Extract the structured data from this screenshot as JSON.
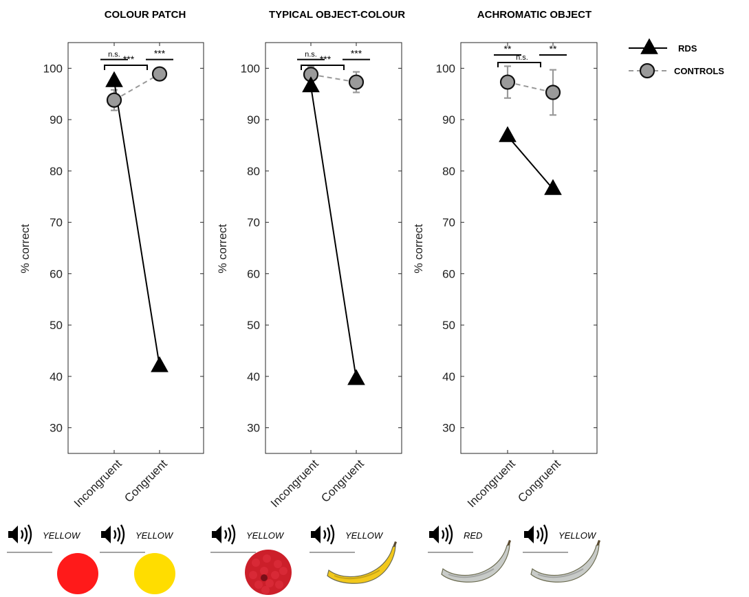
{
  "chart_data": [
    {
      "type": "line",
      "title": "COLOUR PATCH",
      "ylabel": "% correct",
      "ylim": [
        25,
        105
      ],
      "yticks": [
        30,
        40,
        50,
        60,
        70,
        80,
        90,
        100
      ],
      "categories": [
        "Incongruent",
        "Congruent"
      ],
      "series": [
        {
          "name": "RDS",
          "values": [
            97.5,
            42
          ]
        },
        {
          "name": "CONTROLS",
          "values": [
            93.8,
            98.9
          ],
          "error": [
            2.0,
            0.7
          ]
        }
      ],
      "significance": [
        {
          "label": "n.s.",
          "between": "RDS-CONTROLS",
          "category": "Incongruent"
        },
        {
          "label": "***",
          "between": "RDS-CONTROLS",
          "category": "Congruent"
        },
        {
          "label": "***",
          "between": "Incongruent-Congruent"
        }
      ],
      "stimuli": [
        {
          "word": "YELLOW",
          "picture": "red-patch"
        },
        {
          "word": "YELLOW",
          "picture": "yellow-patch"
        }
      ]
    },
    {
      "type": "line",
      "title": "TYPICAL OBJECT-COLOUR",
      "ylabel": "% correct",
      "ylim": [
        25,
        105
      ],
      "yticks": [
        30,
        40,
        50,
        60,
        70,
        80,
        90,
        100
      ],
      "categories": [
        "Incongruent",
        "Congruent"
      ],
      "series": [
        {
          "name": "RDS",
          "values": [
            96.5,
            39.5
          ]
        },
        {
          "name": "CONTROLS",
          "values": [
            98.8,
            97.3
          ],
          "error": [
            1.5,
            2.0
          ]
        }
      ],
      "significance": [
        {
          "label": "n.s.",
          "between": "RDS-CONTROLS",
          "category": "Incongruent"
        },
        {
          "label": "***",
          "between": "RDS-CONTROLS",
          "category": "Congruent"
        },
        {
          "label": "***",
          "between": "Incongruent-Congruent"
        }
      ],
      "stimuli": [
        {
          "word": "YELLOW",
          "picture": "raspberry"
        },
        {
          "word": "YELLOW",
          "picture": "banana"
        }
      ]
    },
    {
      "type": "line",
      "title": "ACHROMATIC OBJECT",
      "ylabel": "% correct",
      "ylim": [
        25,
        105
      ],
      "yticks": [
        30,
        40,
        50,
        60,
        70,
        80,
        90,
        100
      ],
      "categories": [
        "Incongruent",
        "Congruent"
      ],
      "series": [
        {
          "name": "RDS",
          "values": [
            86.8,
            76.5
          ]
        },
        {
          "name": "CONTROLS",
          "values": [
            97.3,
            95.3
          ],
          "error": [
            3.1,
            4.4
          ]
        }
      ],
      "significance": [
        {
          "label": "**",
          "between": "RDS-CONTROLS",
          "category": "Incongruent"
        },
        {
          "label": "**",
          "between": "RDS-CONTROLS",
          "category": "Congruent"
        },
        {
          "label": "n.s.",
          "between": "Incongruent-Congruent"
        }
      ],
      "stimuli": [
        {
          "word": "RED",
          "picture": "grey-banana"
        },
        {
          "word": "YELLOW",
          "picture": "grey-banana"
        }
      ]
    }
  ],
  "legend": {
    "placement": "top-right",
    "entries": [
      {
        "label": "RDS",
        "marker": "triangle-icon",
        "line": "solid",
        "color": "#000000"
      },
      {
        "label": "CONTROLS",
        "marker": "circle-icon",
        "line": "dashed",
        "color": "#999999"
      }
    ]
  },
  "colors": {
    "rds": "#000000",
    "controls_fill": "#9a9a9a",
    "controls_line": "#999999",
    "error_bar": "#999999",
    "red_patch": "#ff1a1a",
    "yellow_patch": "#ffdd00",
    "raspberry": "#cc1f2a",
    "banana": "#f2c81c",
    "grey_banana": "#c8cbc8"
  },
  "icons": {
    "speaker": "speaker-icon",
    "triangle": "triangle-icon",
    "circle": "circle-icon"
  }
}
